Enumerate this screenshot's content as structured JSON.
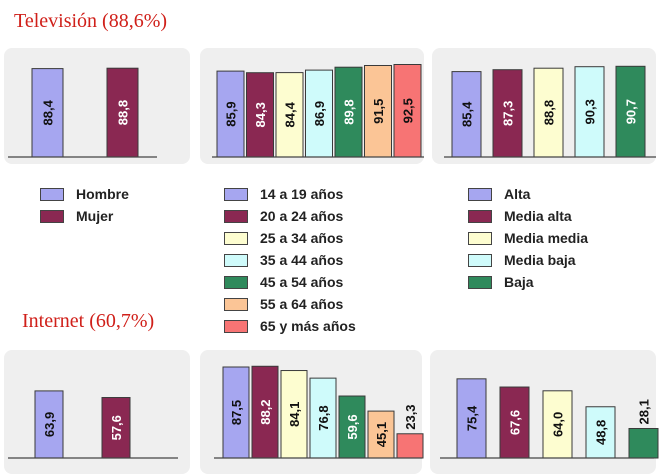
{
  "colors": {
    "bar1": "#a6a6f0",
    "bar2": "#8a2852",
    "bar3": "#fdfdd0",
    "bar4": "#cffbfb",
    "bar5": "#2f8a5c",
    "bar6": "#fbc596",
    "bar7": "#f77474",
    "title": "#d0201a"
  },
  "sections": {
    "tv_title": "Televisión (88,6%)",
    "internet_title": "Internet (60,7%)"
  },
  "legends": {
    "sexo": [
      "Hombre",
      "Mujer"
    ],
    "edad": [
      "14 a 19 años",
      "20 a 24 años",
      "25 a 34 años",
      "35 a 44 años",
      "45 a 54 años",
      "55 a 64 años",
      "65 y más años"
    ],
    "clase": [
      "Alta",
      "Media alta",
      "Media media",
      "Media baja",
      "Baja"
    ]
  },
  "chart_data": [
    {
      "type": "bar",
      "group": "Televisión",
      "panel": "sexo",
      "categories": [
        "Hombre",
        "Mujer"
      ],
      "values": [
        88.4,
        88.8
      ],
      "labels": [
        "88,4",
        "88,8"
      ]
    },
    {
      "type": "bar",
      "group": "Televisión",
      "panel": "edad",
      "categories": [
        "14 a 19 años",
        "20 a 24 años",
        "25 a 34 años",
        "35 a 44 años",
        "45 a 54 años",
        "55 a 64 años",
        "65 y más años"
      ],
      "values": [
        85.9,
        84.3,
        84.4,
        86.9,
        89.8,
        91.5,
        92.5
      ],
      "labels": [
        "85,9",
        "84,3",
        "84,4",
        "86,9",
        "89,8",
        "91,5",
        "92,5"
      ]
    },
    {
      "type": "bar",
      "group": "Televisión",
      "panel": "clase",
      "categories": [
        "Alta",
        "Media alta",
        "Media media",
        "Media baja",
        "Baja"
      ],
      "values": [
        85.4,
        87.3,
        88.8,
        90.3,
        90.7
      ],
      "labels": [
        "85,4",
        "87,3",
        "88,8",
        "90,3",
        "90,7"
      ]
    },
    {
      "type": "bar",
      "group": "Internet",
      "panel": "sexo",
      "categories": [
        "Hombre",
        "Mujer"
      ],
      "values": [
        63.9,
        57.6
      ],
      "labels": [
        "63,9",
        "57,6"
      ]
    },
    {
      "type": "bar",
      "group": "Internet",
      "panel": "edad",
      "categories": [
        "14 a 19 años",
        "20 a 24 años",
        "25 a 34 años",
        "35 a 44 años",
        "45 a 54 años",
        "55 a 64 años",
        "65 y más años"
      ],
      "values": [
        87.5,
        88.2,
        84.1,
        76.8,
        59.6,
        45.1,
        23.3
      ],
      "labels": [
        "87,5",
        "88,2",
        "84,1",
        "76,8",
        "59,6",
        "45,1",
        "23,3"
      ]
    },
    {
      "type": "bar",
      "group": "Internet",
      "panel": "clase",
      "categories": [
        "Alta",
        "Media alta",
        "Media media",
        "Media baja",
        "Baja"
      ],
      "values": [
        75.4,
        67.6,
        64.0,
        48.8,
        28.1
      ],
      "labels": [
        "75,4",
        "67,6",
        "64,0",
        "48,8",
        "28,1"
      ]
    }
  ]
}
